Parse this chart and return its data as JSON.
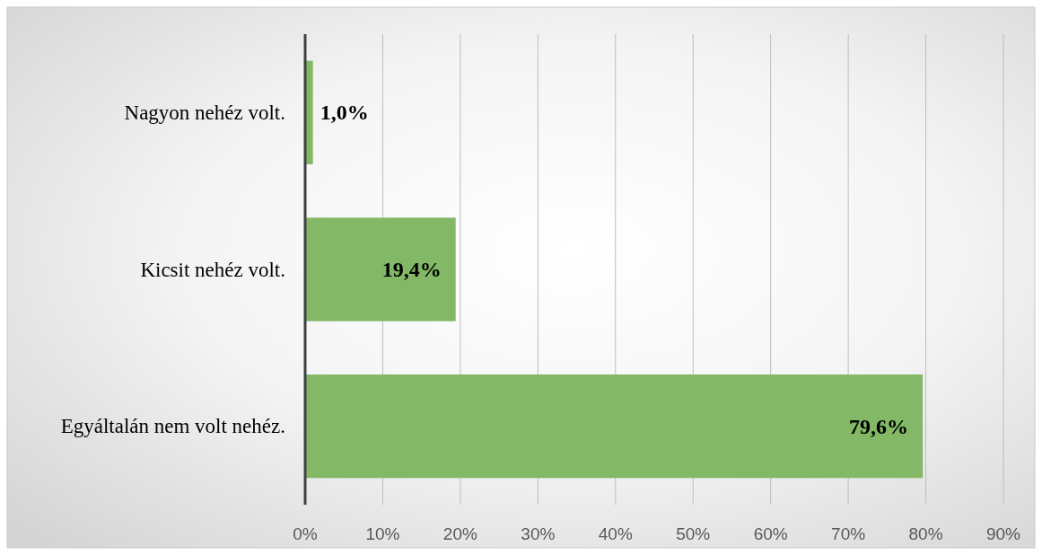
{
  "chart_data": {
    "type": "bar",
    "orientation": "horizontal",
    "categories": [
      "Nagyon nehéz volt.",
      "Kicsit nehéz volt.",
      "Egyáltalán nem volt nehéz."
    ],
    "values": [
      1.0,
      19.4,
      79.6
    ],
    "value_labels": [
      "1,0%",
      "19,4%",
      "79,6%"
    ],
    "color": "#82b866",
    "xlim": [
      0,
      90
    ],
    "xticks": [
      {
        "value": 0,
        "label": "0%"
      },
      {
        "value": 10,
        "label": "10%"
      },
      {
        "value": 20,
        "label": "20%"
      },
      {
        "value": 30,
        "label": "30%"
      },
      {
        "value": 40,
        "label": "40%"
      },
      {
        "value": 50,
        "label": "50%"
      },
      {
        "value": 60,
        "label": "60%"
      },
      {
        "value": 70,
        "label": "70%"
      },
      {
        "value": 80,
        "label": "80%"
      },
      {
        "value": 90,
        "label": "90%"
      }
    ],
    "grid": "x"
  }
}
